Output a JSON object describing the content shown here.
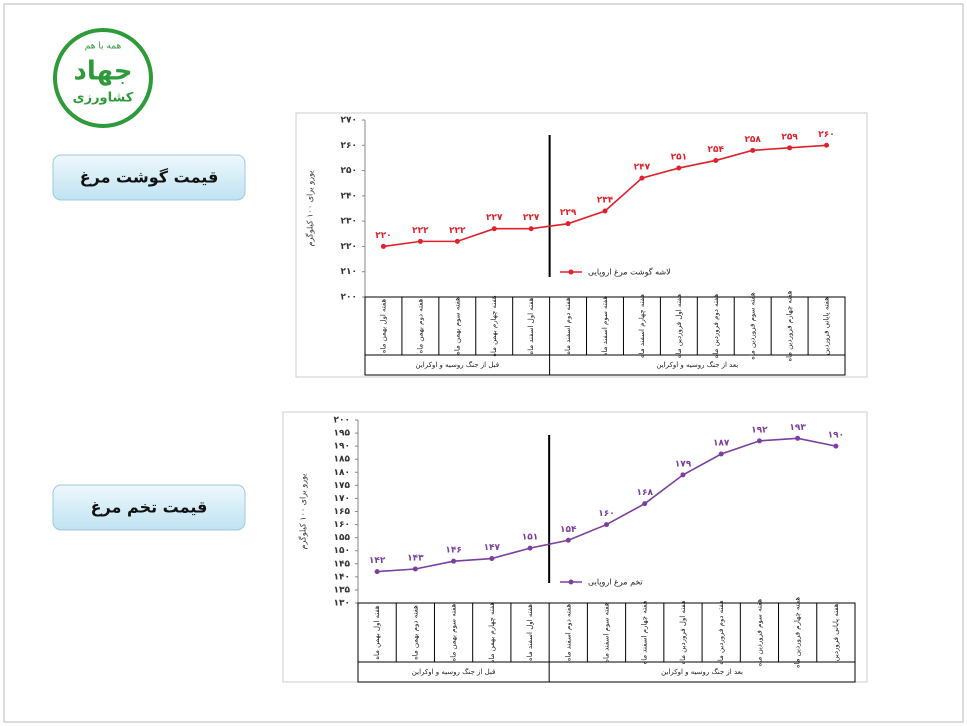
{
  "logo": {
    "slogan": "همه با هم",
    "title": "جهاد",
    "subtitle": "کشاورزی"
  },
  "labels": [
    "قیمت گوشت مرغ",
    "قیمت تخم مرغ"
  ],
  "chart_data": [
    {
      "type": "line",
      "y_label": "یورو برای ۱۰۰ کیلوگرم",
      "categories": [
        "هفته اول بهمن ماه",
        "هفته دوم بهمن ماه",
        "هفته سوم بهمن ماه",
        "هفته چهارم بهمن ماه",
        "هفته اول اسفند ماه",
        "هفته دوم اسفند ماه",
        "هفته سوم اسفند ماه",
        "هفته چهارم اسفند ماه",
        "هفته اول فروردین ماه",
        "هفته دوم فروردین ماه",
        "هفته سوم فروردین ماه",
        "هفته چهارم فروردین ماه",
        "هفته پایانی فروردین"
      ],
      "groups": [
        "قبل از جنگ روسیه و اوکراین",
        "بعد از جنگ روسیه و اوکراین"
      ],
      "series": [
        {
          "name": "لاشه گوشت مرغ اروپایی",
          "color": "#e0202a",
          "values": [
            220,
            222,
            222,
            227,
            227,
            229,
            234,
            247,
            251,
            254,
            258,
            259,
            260
          ],
          "value_labels": [
            "۲۲۰",
            "۲۲۲",
            "۲۲۲",
            "۲۲۷",
            "۲۲۷",
            "۲۲۹",
            "۲۳۴",
            "۲۴۷",
            "۲۵۱",
            "۲۵۴",
            "۲۵۸",
            "۲۵۹",
            "۲۶۰"
          ]
        }
      ],
      "ylim": [
        200,
        270
      ],
      "yticks": [
        {
          "value": 200,
          "label": "۲۰۰"
        },
        {
          "value": 210,
          "label": "۲۱۰"
        },
        {
          "value": 220,
          "label": "۲۲۰"
        },
        {
          "value": 230,
          "label": "۲۳۰"
        },
        {
          "value": 240,
          "label": "۲۴۰"
        },
        {
          "value": 250,
          "label": "۲۵۰"
        },
        {
          "value": 260,
          "label": "۲۶۰"
        },
        {
          "value": 270,
          "label": "۲۷۰"
        }
      ]
    },
    {
      "type": "line",
      "y_label": "یورو برای ۱۰۰ کیلوگرم",
      "categories": [
        "هفته اول بهمن ماه",
        "هفته دوم بهمن ماه",
        "هفته سوم بهمن ماه",
        "هفته چهارم بهمن ماه",
        "هفته اول اسفند ماه",
        "هفته دوم اسفند ماه",
        "هفته سوم اسفند ماه",
        "هفته چهارم اسفند ماه",
        "هفته اول فروردین ماه",
        "هفته دوم فروردین ماه",
        "هفته سوم فروردین ماه",
        "هفته چهارم فروردین ماه",
        "هفته پایانی فروردین"
      ],
      "groups": [
        "قبل از جنگ روسیه و اوکراین",
        "بعد از جنگ روسیه و اوکراین"
      ],
      "series": [
        {
          "name": "تخم مرغ اروپایی",
          "color": "#7b3f9e",
          "values": [
            142,
            143,
            146,
            147,
            151,
            154,
            160,
            168,
            179,
            187,
            192,
            193,
            190
          ],
          "value_labels": [
            "۱۴۲",
            "۱۴۳",
            "۱۴۶",
            "۱۴۷",
            "۱۵۱",
            "۱۵۴",
            "۱۶۰",
            "۱۶۸",
            "۱۷۹",
            "۱۸۷",
            "۱۹۲",
            "۱۹۳",
            "۱۹۰"
          ]
        }
      ],
      "ylim": [
        130,
        200
      ],
      "yticks": [
        {
          "value": 130,
          "label": "۱۳۰"
        },
        {
          "value": 135,
          "label": "۱۳۵"
        },
        {
          "value": 140,
          "label": "۱۴۰"
        },
        {
          "value": 145,
          "label": "۱۴۵"
        },
        {
          "value": 150,
          "label": "۱۵۰"
        },
        {
          "value": 155,
          "label": "۱۵۵"
        },
        {
          "value": 160,
          "label": "۱۶۰"
        },
        {
          "value": 165,
          "label": "۱۶۵"
        },
        {
          "value": 170,
          "label": "۱۷۰"
        },
        {
          "value": 175,
          "label": "۱۷۵"
        },
        {
          "value": 180,
          "label": "۱۸۰"
        },
        {
          "value": 185,
          "label": "۱۸۵"
        },
        {
          "value": 190,
          "label": "۱۹۰"
        },
        {
          "value": 195,
          "label": "۱۹۵"
        },
        {
          "value": 200,
          "label": "۲۰۰"
        }
      ]
    }
  ]
}
